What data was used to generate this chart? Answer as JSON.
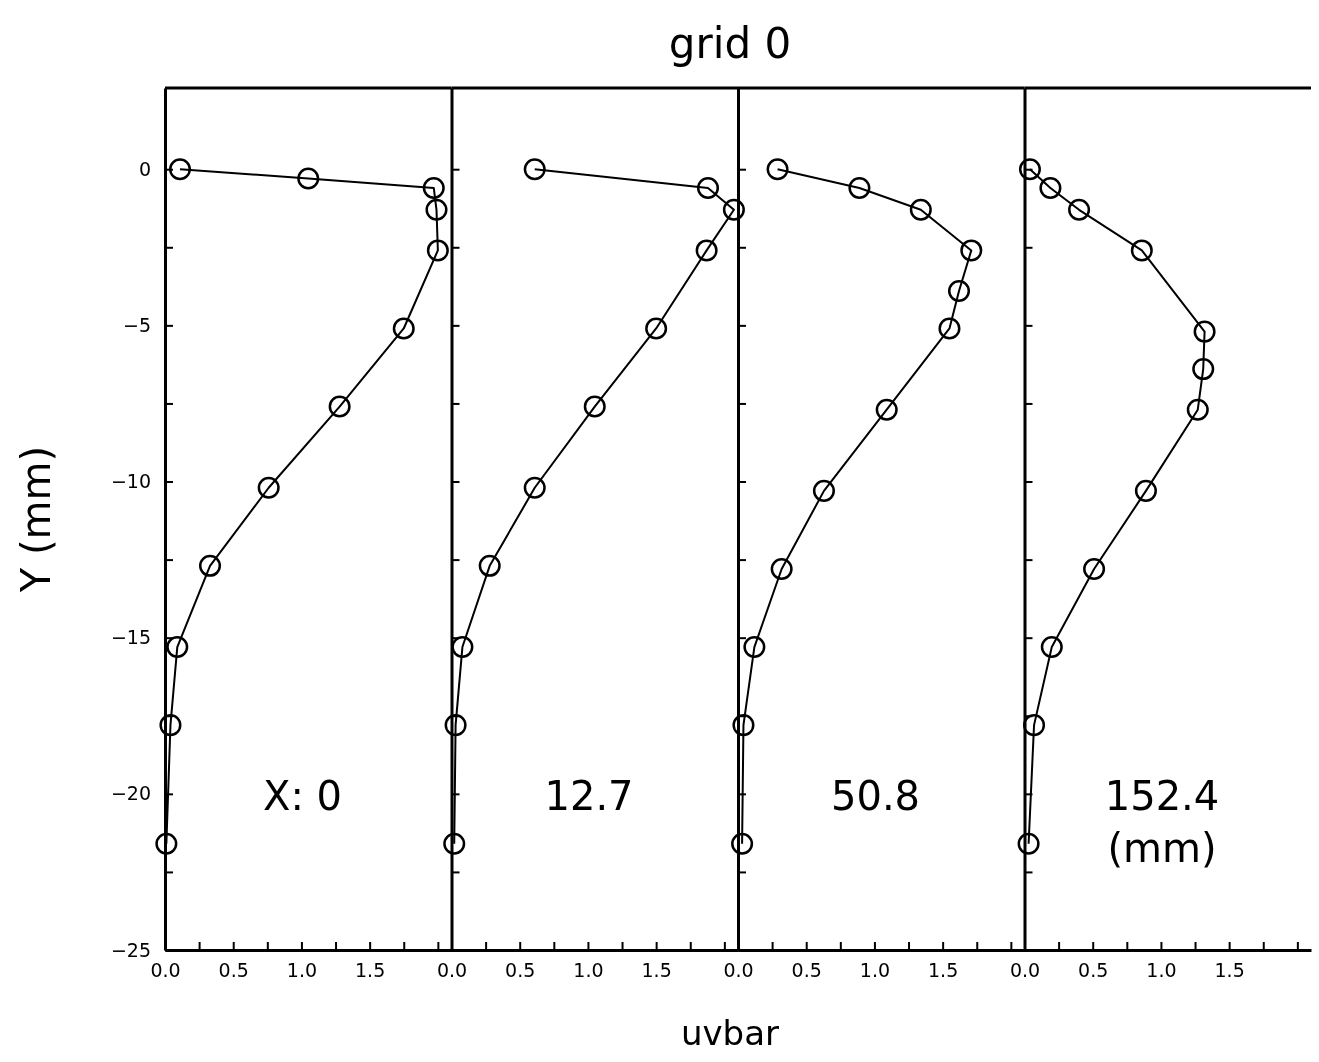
{
  "chart_data": [
    {
      "type": "line",
      "ylabel": "Y (mm)",
      "annotations": [
        "X: 0"
      ],
      "marker": "circle",
      "xlim": [
        0,
        2.1
      ],
      "ylim": [
        -25,
        2.6
      ],
      "xticks": [
        {
          "value": 0,
          "label": "0.0"
        },
        {
          "value": 0.25,
          "label": null
        },
        {
          "value": 0.5,
          "label": "0.5"
        },
        {
          "value": 0.75,
          "label": null
        },
        {
          "value": 1,
          "label": "1.0"
        },
        {
          "value": 1.25,
          "label": null
        },
        {
          "value": 1.5,
          "label": "1.5"
        },
        {
          "value": 1.75,
          "label": null
        },
        {
          "value": 2,
          "label": null
        }
      ],
      "yticks": [
        -25,
        {
          "value": -22.5,
          "label": null
        },
        -20,
        {
          "value": -17.5,
          "label": null
        },
        -15,
        {
          "value": -12.5,
          "label": null
        },
        -10,
        {
          "value": -7.5,
          "label": null
        },
        -5,
        {
          "value": -2.5,
          "label": null
        },
        0
      ],
      "series": [
        {
          "color": "#000000",
          "x": [
            0.11,
            1.05,
            1.97,
            1.99,
            2.0,
            1.75,
            1.28,
            0.76,
            0.33,
            0.09,
            0.04,
            0.01
          ],
          "values": [
            0,
            -0.3,
            -0.6,
            -1.3,
            -2.6,
            -5.1,
            -7.6,
            -10.2,
            -12.7,
            -15.3,
            -17.8,
            -21.6
          ]
        }
      ]
    },
    {
      "type": "line",
      "title": "grid 0",
      "xlabel": "uvbar",
      "annotations": [
        "12.7"
      ],
      "marker": "circle",
      "tick_labels": "x",
      "xlim": [
        0,
        2.1
      ],
      "ylim": [
        -25,
        2.6
      ],
      "xticks": [
        {
          "value": 0,
          "label": "0.0"
        },
        {
          "value": 0.25,
          "label": null
        },
        {
          "value": 0.5,
          "label": "0.5"
        },
        {
          "value": 0.75,
          "label": null
        },
        {
          "value": 1,
          "label": "1.0"
        },
        {
          "value": 1.25,
          "label": null
        },
        {
          "value": 1.5,
          "label": "1.5"
        },
        {
          "value": 1.75,
          "label": null
        },
        {
          "value": 2,
          "label": null
        }
      ],
      "yticks": [
        -25,
        {
          "value": -22.5,
          "label": null
        },
        -20,
        {
          "value": -17.5,
          "label": null
        },
        -15,
        {
          "value": -12.5,
          "label": null
        },
        -10,
        {
          "value": -7.5,
          "label": null
        },
        -5,
        {
          "value": -2.5,
          "label": null
        },
        0
      ],
      "series": [
        {
          "color": "#000000",
          "x": [
            0.61,
            1.88,
            2.07,
            1.87,
            1.5,
            1.05,
            0.61,
            0.28,
            0.08,
            0.03,
            0.02
          ],
          "values": [
            0,
            -0.6,
            -1.3,
            -2.6,
            -5.1,
            -7.6,
            -10.2,
            -12.7,
            -15.3,
            -17.8,
            -21.6
          ]
        }
      ]
    },
    {
      "type": "line",
      "annotations": [
        "50.8"
      ],
      "marker": "circle",
      "tick_labels": "x",
      "xlim": [
        0,
        2.1
      ],
      "ylim": [
        -25,
        2.6
      ],
      "xticks": [
        {
          "value": 0,
          "label": "0.0"
        },
        {
          "value": 0.25,
          "label": null
        },
        {
          "value": 0.5,
          "label": "0.5"
        },
        {
          "value": 0.75,
          "label": null
        },
        {
          "value": 1,
          "label": "1.0"
        },
        {
          "value": 1.25,
          "label": null
        },
        {
          "value": 1.5,
          "label": "1.5"
        },
        {
          "value": 1.75,
          "label": null
        },
        {
          "value": 2,
          "label": null
        }
      ],
      "yticks": [
        -25,
        {
          "value": -22.5,
          "label": null
        },
        -20,
        {
          "value": -17.5,
          "label": null
        },
        -15,
        {
          "value": -12.5,
          "label": null
        },
        -10,
        {
          "value": -7.5,
          "label": null
        },
        -5,
        {
          "value": -2.5,
          "label": null
        },
        0
      ],
      "series": [
        {
          "color": "#000000",
          "x": [
            0.29,
            0.89,
            1.34,
            1.71,
            1.62,
            1.55,
            1.09,
            0.63,
            0.32,
            0.12,
            0.04,
            0.03
          ],
          "values": [
            0,
            -0.6,
            -1.3,
            -2.6,
            -3.9,
            -5.1,
            -7.7,
            -10.3,
            -12.8,
            -15.3,
            -17.8,
            -21.6
          ]
        }
      ]
    },
    {
      "type": "line",
      "annotations": [
        "152.4",
        "(mm)"
      ],
      "marker": "circle",
      "tick_labels": "x",
      "xlim": [
        0,
        2.1
      ],
      "ylim": [
        -25,
        2.6
      ],
      "xticks": [
        {
          "value": 0,
          "label": "0.0"
        },
        {
          "value": 0.25,
          "label": null
        },
        {
          "value": 0.5,
          "label": "0.5"
        },
        {
          "value": 0.75,
          "label": null
        },
        {
          "value": 1,
          "label": "1.0"
        },
        {
          "value": 1.25,
          "label": null
        },
        {
          "value": 1.5,
          "label": "1.5"
        },
        {
          "value": 1.75,
          "label": null
        },
        {
          "value": 2,
          "label": null
        }
      ],
      "yticks": [
        -25,
        {
          "value": -22.5,
          "label": null
        },
        -20,
        {
          "value": -17.5,
          "label": null
        },
        -15,
        {
          "value": -12.5,
          "label": null
        },
        -10,
        {
          "value": -7.5,
          "label": null
        },
        -5,
        {
          "value": -2.5,
          "label": null
        },
        0
      ],
      "series": [
        {
          "color": "#000000",
          "x": [
            0.04,
            0.19,
            0.4,
            0.86,
            1.32,
            1.31,
            1.27,
            0.89,
            0.51,
            0.2,
            0.07,
            0.03
          ],
          "values": [
            0,
            -0.6,
            -1.3,
            -2.6,
            -5.2,
            -6.4,
            -7.7,
            -10.3,
            -12.8,
            -15.3,
            -17.8,
            -21.6
          ]
        }
      ]
    }
  ]
}
